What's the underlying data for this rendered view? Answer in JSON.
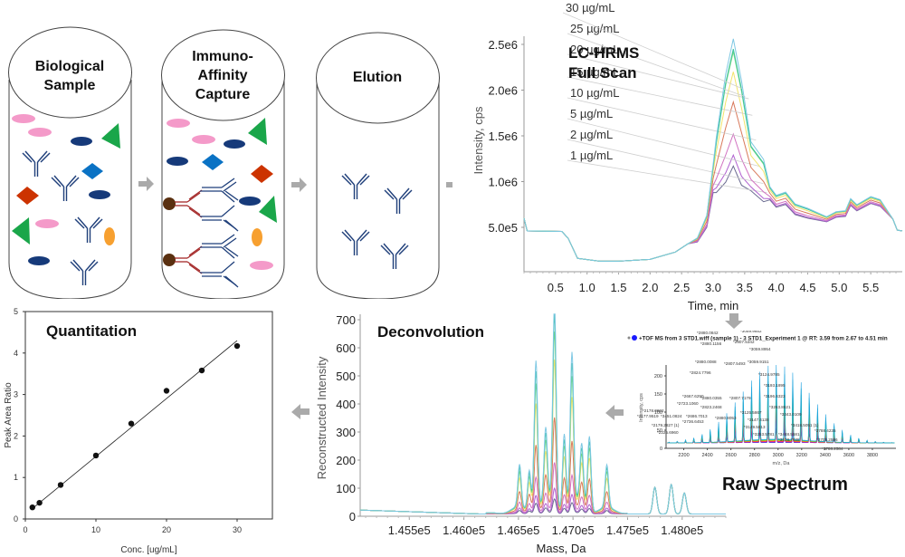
{
  "workflow": {
    "stages": [
      {
        "title_line1": "Biological",
        "title_line2": "Sample"
      },
      {
        "title_line1": "Immuno-",
        "title_line2": "Affinity",
        "title_line3": "Capture"
      },
      {
        "title_line1": "Elution"
      }
    ],
    "colors": {
      "antibody": "#1f3f7a",
      "capture_antibody": "#a52a2a",
      "bead": "#5a3010",
      "pink": "#f49ac9",
      "navy": "#163a7a",
      "green": "#1aa64a",
      "blue": "#0a72c4",
      "red": "#cc3300",
      "orange": "#f7a030",
      "arrow": "#aaaaaa"
    }
  },
  "full_scan": {
    "title_line1": "LC-HRMS",
    "title_line2": "Full Scan"
  },
  "raw_spectrum": {
    "title": "Raw Spectrum",
    "header": "+TOF MS from 3 STD1.wiff (sample 1) - 3 STD1_Experiment 1 @ RT: 3.59 from 2.67 to 4.51 min"
  },
  "deconvolution": {
    "title": "Deconvolution"
  },
  "quantitation": {
    "title": "Quantitation"
  },
  "chart_data": [
    {
      "id": "full_scan",
      "type": "line",
      "title": "LC-HRMS Full Scan",
      "xlabel": "Time, min",
      "ylabel": "Intensity, cps",
      "xlim": [
        0,
        6.0
      ],
      "ylim": [
        0,
        2500000.0
      ],
      "xticks": [
        "0.5",
        "1.0",
        "1.5",
        "2.0",
        "2.5",
        "3.0",
        "3.5",
        "4.0",
        "4.5",
        "5.0",
        "5.5"
      ],
      "yticks": [
        "5.0e5",
        "1.0e6",
        "1.5e6",
        "2.0e6",
        "2.5e6"
      ],
      "series": [
        {
          "name": "30 µg/mL",
          "color": "#7ec8e3",
          "peak": 2560000.0
        },
        {
          "name": "25 µg/mL",
          "color": "#3cc3a0",
          "peak": 2450000.0
        },
        {
          "name": "20 µg/mL",
          "color": "#7fdc7f",
          "peak": 2420000.0
        },
        {
          "name": "15 µg/mL",
          "color": "#f2e36a",
          "peak": 2200000.0
        },
        {
          "name": "10 µg/mL",
          "color": "#d8785a",
          "peak": 1870000.0
        },
        {
          "name": "5 µg/mL",
          "color": "#d070c0",
          "peak": 1520000.0
        },
        {
          "name": "2 µg/mL",
          "color": "#b060d0",
          "peak": 1290000.0
        },
        {
          "name": "1 µg/mL",
          "color": "#6a6a90",
          "peak": 1170000.0
        }
      ],
      "baseline_profile": [
        [
          0,
          600000.0
        ],
        [
          0.05,
          460000.0
        ],
        [
          0.6,
          455000.0
        ],
        [
          0.7,
          380000.0
        ],
        [
          0.85,
          160000.0
        ],
        [
          1.2,
          130000.0
        ],
        [
          1.5,
          130000.0
        ],
        [
          2.0,
          150000.0
        ],
        [
          2.4,
          230000.0
        ],
        [
          2.6,
          320000.0
        ],
        [
          2.75,
          340000.0
        ],
        [
          2.9,
          500000.0
        ],
        [
          3.0,
          880000.0
        ]
      ],
      "tail_profile": [
        [
          3.6,
          900000.0
        ],
        [
          3.8,
          780000.0
        ],
        [
          3.9,
          800000.0
        ],
        [
          4.0,
          720000.0
        ],
        [
          4.15,
          750000.0
        ],
        [
          4.3,
          640000.0
        ],
        [
          4.5,
          600000.0
        ],
        [
          4.8,
          560000.0
        ],
        [
          4.95,
          610000.0
        ],
        [
          5.1,
          620000.0
        ],
        [
          5.18,
          740000.0
        ],
        [
          5.28,
          680000.0
        ],
        [
          5.5,
          760000.0
        ],
        [
          5.65,
          730000.0
        ],
        [
          5.85,
          590000.0
        ],
        [
          5.92,
          470000.0
        ],
        [
          6.0,
          460000.0
        ]
      ]
    },
    {
      "id": "raw_spectrum",
      "type": "line",
      "xlabel": "m/z, Da",
      "ylabel": "Intensity, cps",
      "xlim": [
        2050,
        4000
      ],
      "ylim": [
        0,
        230
      ],
      "xticks": [
        "2200",
        "2400",
        "2600",
        "2800",
        "3000",
        "3200",
        "3400",
        "3600",
        "3800"
      ],
      "yticks": [
        "0",
        "50",
        "100",
        "150",
        "200"
      ],
      "peak_labels": [
        "*2880.0842",
        "*3059.9852",
        "*2880.1156",
        "*2807.5342",
        "*3059.8954",
        "*2880.0088",
        "*2807.5493",
        "*3059.9151",
        "*2824.7796",
        "*3124.9785",
        "*3193.1895",
        "*2667.6290",
        "*2880.0355",
        "*2807.7179",
        "*3196.6323",
        "*2723.1060",
        "*2823.2468",
        "*3263.8621",
        "*3125.5867",
        "*3343.0109",
        "*2178.0602",
        "*2686.7013",
        "*2880.8053",
        "*3147.4138",
        "*3418.5051 (1)",
        "*2177.9519",
        "*3451.0824",
        "*2736.6453",
        "*3149.5813",
        "*2179.2827 (1)",
        "*3253.5781",
        "*3448.5581",
        "*3788.4235",
        "*2225.6960",
        "*3528.7038",
        "*3705.2596",
        "*3788.2584"
      ]
    },
    {
      "id": "deconvolution",
      "type": "line",
      "xlabel": "Mass, Da",
      "ylabel": "Reconstructed Intensity",
      "xlim": [
        145050,
        148400
      ],
      "ylim": [
        0,
        720
      ],
      "xticks": [
        "1.455e5",
        "1.460e5",
        "1.465e5",
        "1.470e5",
        "1.475e5",
        "1.480e5"
      ],
      "yticks": [
        "0",
        "100",
        "200",
        "300",
        "400",
        "500",
        "600",
        "700"
      ],
      "main_peaks": [
        {
          "mass": 146510,
          "value": 150
        },
        {
          "mass": 146600,
          "value": 145
        },
        {
          "mass": 146660,
          "value": 530
        },
        {
          "mass": 146750,
          "value": 250
        },
        {
          "mass": 146830,
          "value": 720
        },
        {
          "mass": 146920,
          "value": 270
        },
        {
          "mass": 146990,
          "value": 530
        },
        {
          "mass": 147080,
          "value": 200
        },
        {
          "mass": 147150,
          "value": 260
        },
        {
          "mass": 147310,
          "value": 150
        },
        {
          "mass": 147750,
          "value": 95
        },
        {
          "mass": 147900,
          "value": 105
        },
        {
          "mass": 148020,
          "value": 75
        }
      ]
    },
    {
      "id": "quantitation",
      "type": "scatter",
      "title": "Quantitation",
      "xlabel": "Conc. [ug/mL]",
      "ylabel": "Peak Area Ratio",
      "xlim": [
        0,
        35
      ],
      "ylim": [
        0,
        5
      ],
      "xticks": [
        "0",
        "10",
        "20",
        "30"
      ],
      "yticks": [
        "0",
        "1",
        "2",
        "3",
        "4",
        "5"
      ],
      "x": [
        1,
        2,
        5,
        10,
        15,
        20,
        25,
        30
      ],
      "y": [
        0.28,
        0.39,
        0.82,
        1.53,
        2.3,
        3.09,
        3.58,
        4.17
      ],
      "fit": {
        "x0": 1,
        "y0": 0.25,
        "x1": 30,
        "y1": 4.3
      }
    }
  ]
}
